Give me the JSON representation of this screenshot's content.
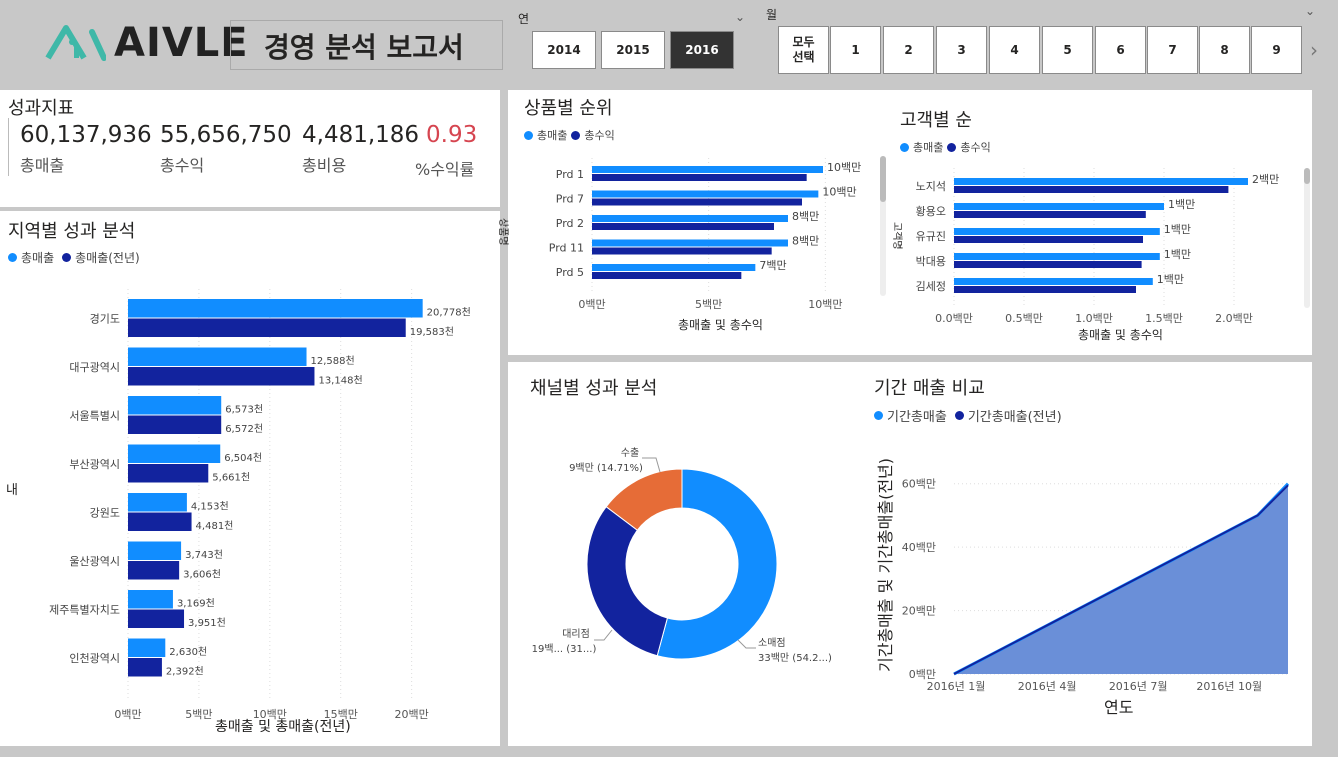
{
  "colors": {
    "primary": "#118dff",
    "secondary": "#12239e",
    "orange": "#e66c37",
    "accent_red": "#d64550",
    "logo": "#3fb8a8"
  },
  "header": {
    "logo_text": "AIVLE",
    "report_title": "경영 분석 보고서",
    "year_slicer": {
      "label": "연",
      "options": [
        "2014",
        "2015",
        "2016"
      ],
      "selected": "2016"
    },
    "month_slicer": {
      "label": "월",
      "options": [
        "모두\n선택",
        "1",
        "2",
        "3",
        "4",
        "5",
        "6",
        "7",
        "8",
        "9"
      ]
    }
  },
  "kpi": {
    "title": "성과지표",
    "items": [
      {
        "value": "60,137,936",
        "label": "총매출"
      },
      {
        "value": "55,656,750",
        "label": "총수익"
      },
      {
        "value": "4,481,186",
        "label": "총비용"
      },
      {
        "value": "0.93",
        "label": "%수익률"
      }
    ]
  },
  "region": {
    "title": "지역별 성과 분석",
    "legend": [
      "총매출",
      "총매출(전년)"
    ],
    "ylabel": "내",
    "xlabel": "총매출 및 총매출(전년)",
    "xticks": [
      "0백만",
      "5백만",
      "10백만",
      "15백만",
      "20백만"
    ]
  },
  "product": {
    "title": "상품별 순위",
    "legend": [
      "총매출",
      "총수익"
    ],
    "ylabel": "상품명",
    "xlabel": "총매출 및 총수익",
    "xticks": [
      "0백만",
      "5백만",
      "10백만"
    ]
  },
  "customer": {
    "title": "고객별 순",
    "legend": [
      "총매출",
      "총수익"
    ],
    "ylabel": "고객명",
    "xlabel": "총매출 및 총수익",
    "xticks": [
      "0.0백만",
      "0.5백만",
      "1.0백만",
      "1.5백만",
      "2.0백만"
    ]
  },
  "channel": {
    "title": "채널별 성과 분석",
    "slices": [
      {
        "name": "수출",
        "label": "9백만 (14.71%)",
        "color": "#e66c37"
      },
      {
        "name": "소매점",
        "label": "33백만 (54.2...)",
        "color": "#118dff"
      },
      {
        "name": "대리점",
        "label": "19백... (31...)",
        "color": "#12239e"
      }
    ]
  },
  "period": {
    "title": "기간 매출 비교",
    "legend": [
      "기간총매출",
      "기간총매출(전년)"
    ],
    "ylabel": "기간총매출 및 기간총매출(전년)",
    "xlabel": "연도",
    "yticks": [
      "0백만",
      "20백만",
      "40백만",
      "60백만"
    ],
    "xticks": [
      "2016년 1월",
      "2016년 4월",
      "2016년 7월",
      "2016년 10월"
    ]
  },
  "chart_data": [
    {
      "type": "bar",
      "title": "지역별 성과 분석",
      "xlabel": "총매출 및 총매출(전년)",
      "ylabel": "내",
      "categories": [
        "경기도",
        "대구광역시",
        "서울특별시",
        "부산광역시",
        "강원도",
        "울산광역시",
        "제주특별자치도",
        "인천광역시"
      ],
      "series": [
        {
          "name": "총매출",
          "values": [
            20778,
            12588,
            6573,
            6504,
            4153,
            3743,
            3169,
            2630
          ],
          "labels": [
            "20,778천",
            "12,588천",
            "6,573천",
            "6,504천",
            "4,153천",
            "3,743천",
            "3,169천",
            "2,630천"
          ]
        },
        {
          "name": "총매출(전년)",
          "values": [
            19583,
            13148,
            6572,
            5661,
            4481,
            3606,
            3951,
            2392
          ],
          "labels": [
            "19,583천",
            "13,148천",
            "6,572천",
            "5,661천",
            "4,481천",
            "3,606천",
            "3,951천",
            "2,392천"
          ]
        }
      ],
      "xlim": [
        0,
        22000
      ],
      "unit": "천"
    },
    {
      "type": "bar",
      "title": "상품별 순위",
      "xlabel": "총매출 및 총수익",
      "ylabel": "상품명",
      "categories": [
        "Prd 1",
        "Prd 7",
        "Prd 2",
        "Prd 11",
        "Prd 5"
      ],
      "series": [
        {
          "name": "총매출",
          "values": [
            9.9,
            9.7,
            8.4,
            8.4,
            7.0
          ],
          "labels": [
            "10백만",
            "10백만",
            "8백만",
            "8백만",
            "7백만"
          ]
        },
        {
          "name": "총수익",
          "values": [
            9.2,
            9.0,
            7.8,
            7.7,
            6.4
          ]
        }
      ],
      "xlim": [
        0,
        12
      ]
    },
    {
      "type": "bar",
      "title": "고객별 순",
      "xlabel": "총매출 및 총수익",
      "ylabel": "고객명",
      "categories": [
        "노지석",
        "황용오",
        "유규진",
        "박대용",
        "김세정"
      ],
      "series": [
        {
          "name": "총매출",
          "values": [
            2.1,
            1.5,
            1.47,
            1.47,
            1.42
          ],
          "labels": [
            "2백만",
            "1백만",
            "1백만",
            "1백만",
            "1백만"
          ]
        },
        {
          "name": "총수익",
          "values": [
            1.96,
            1.37,
            1.35,
            1.34,
            1.3
          ]
        }
      ],
      "xlim": [
        0,
        2.4
      ]
    },
    {
      "type": "pie",
      "title": "채널별 성과 분석",
      "categories": [
        "소매점",
        "대리점",
        "수출"
      ],
      "values": [
        54.2,
        31.09,
        14.71
      ]
    },
    {
      "type": "area",
      "title": "기간 매출 비교",
      "xlabel": "연도",
      "ylabel": "기간총매출 및 기간총매출(전년)",
      "x": [
        "2016-01",
        "2016-02",
        "2016-03",
        "2016-04",
        "2016-05",
        "2016-06",
        "2016-07",
        "2016-08",
        "2016-09",
        "2016-10",
        "2016-11",
        "2016-12"
      ],
      "series": [
        {
          "name": "기간총매출",
          "values": [
            0,
            5,
            10,
            15,
            20,
            25,
            30,
            35,
            40,
            45,
            50,
            60
          ]
        },
        {
          "name": "기간총매출(전년)",
          "values": [
            0,
            5,
            10,
            15,
            20,
            25,
            30,
            35,
            40,
            45,
            50,
            59.5
          ]
        }
      ],
      "ylim": [
        0,
        70
      ]
    }
  ]
}
